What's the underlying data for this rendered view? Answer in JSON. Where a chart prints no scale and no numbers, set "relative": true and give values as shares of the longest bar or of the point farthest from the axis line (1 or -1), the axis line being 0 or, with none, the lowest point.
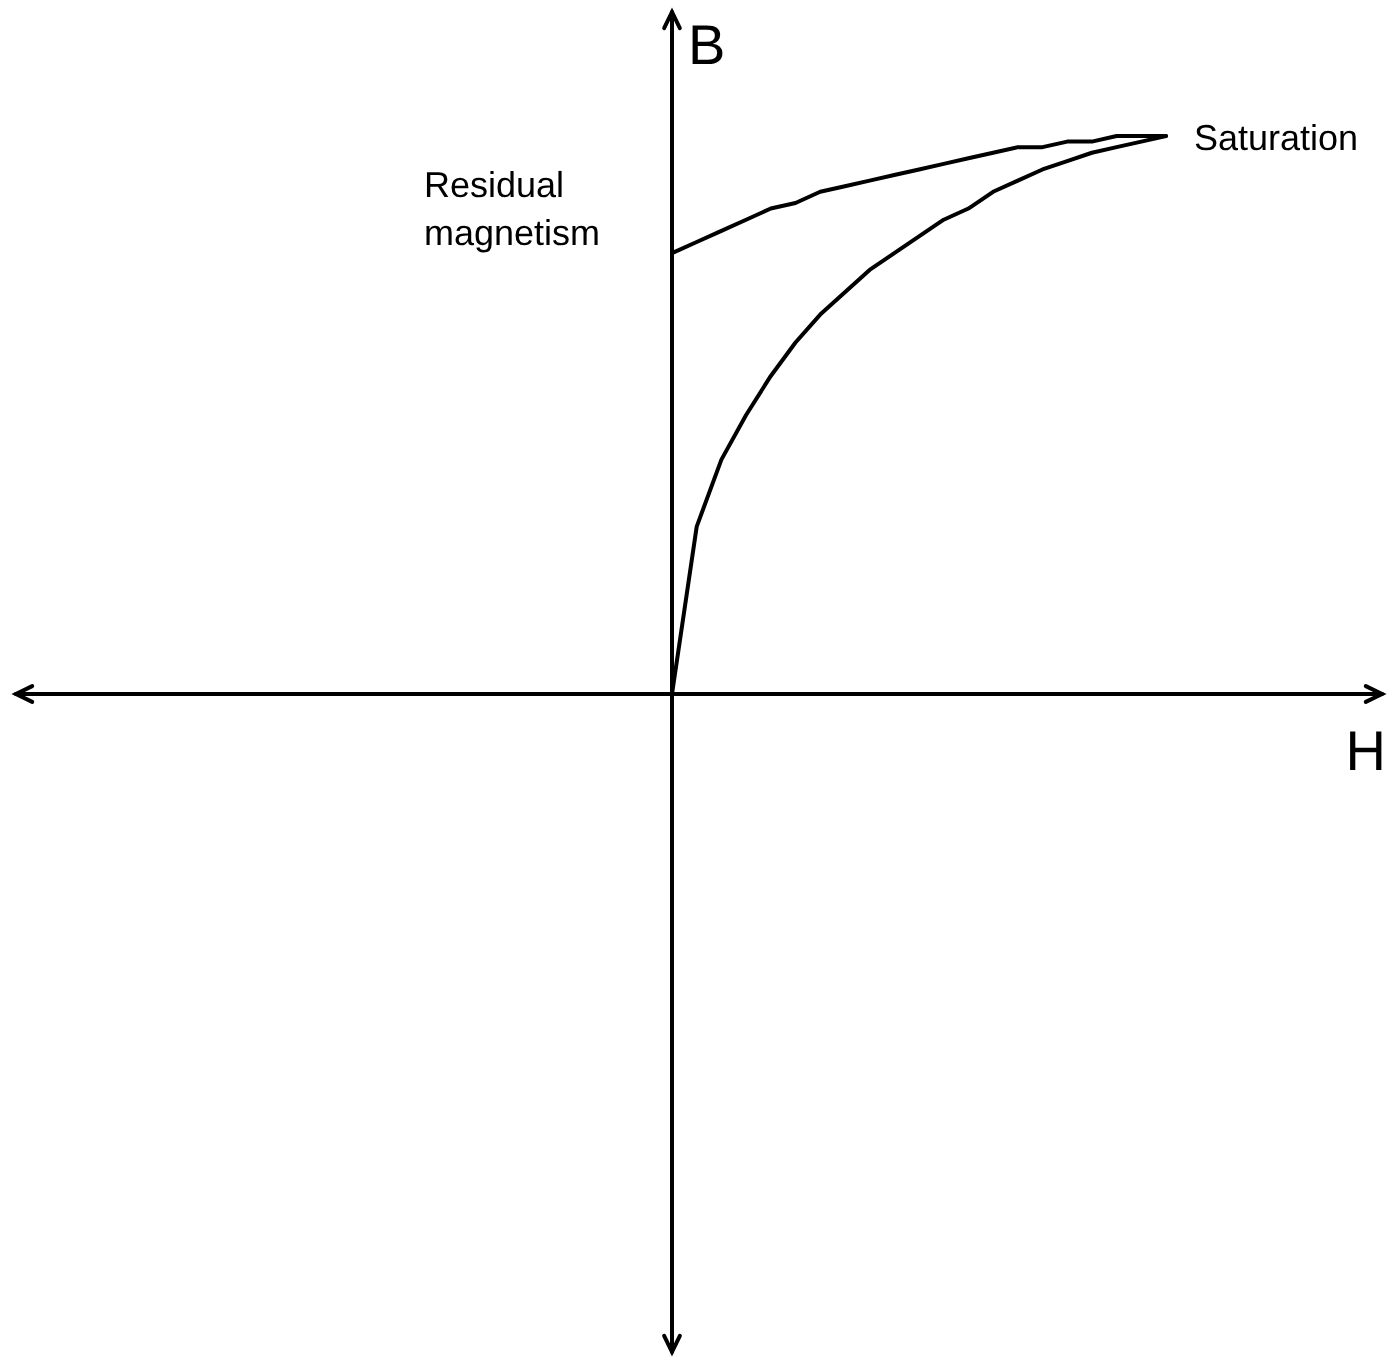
{
  "chart_data": {
    "type": "line",
    "relative": true,
    "xlabel": "H",
    "ylabel": "B",
    "marker": "none",
    "line_style": "solid",
    "categories": [
      null,
      null,
      null,
      null,
      null,
      null,
      null,
      null,
      null,
      null,
      null,
      null,
      null,
      null,
      null,
      null,
      null,
      null,
      null,
      null,
      null
    ],
    "series": [
      {
        "color": "#000000",
        "values": [
          0,
          0.3,
          0.42,
          0.5,
          0.57,
          0.63,
          0.68,
          0.72,
          0.76,
          0.79,
          0.82,
          0.85,
          0.87,
          0.9,
          0.92,
          0.94,
          0.955,
          0.97,
          0.98,
          0.99,
          1
        ]
      },
      {
        "color": "#000000",
        "values": [
          0.79,
          0.81,
          0.83,
          0.85,
          0.87,
          0.88,
          0.9,
          0.91,
          0.92,
          0.93,
          0.94,
          0.95,
          0.96,
          0.97,
          0.98,
          0.98,
          0.99,
          0.99,
          1,
          1,
          1
        ]
      }
    ],
    "annotations": [
      "Residual magnetism",
      "Saturation"
    ]
  }
}
